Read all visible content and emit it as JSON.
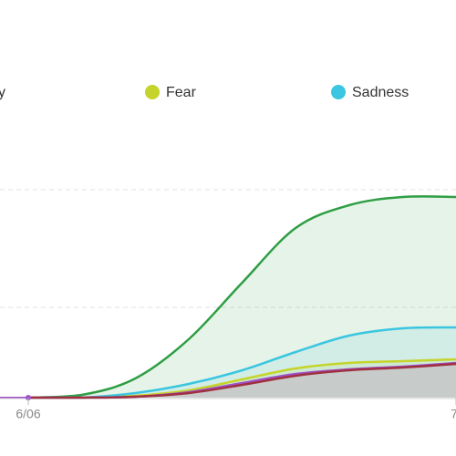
{
  "chart_data": {
    "type": "area-line",
    "categories": [
      "6/06",
      null,
      null,
      null,
      null,
      null,
      null,
      null,
      "7"
    ],
    "ylim": [
      0,
      228
    ],
    "series": [
      {
        "name": "y",
        "color": "#2e9e45",
        "values": [
          0,
          3,
          21,
          64,
          126,
          186,
          211,
          220,
          220
        ]
      },
      {
        "name": "Fear",
        "color": "#c5d42a",
        "values": [
          0,
          0,
          2,
          8,
          20,
          32,
          38,
          40,
          42
        ]
      },
      {
        "name": "Sadness",
        "color": "#3ac6e0",
        "values": [
          0,
          0,
          5,
          15,
          30,
          50,
          68,
          76,
          77
        ]
      },
      {
        "color": "#a050c8",
        "values": [
          0,
          0,
          1,
          6,
          16,
          26,
          31,
          34,
          38
        ]
      },
      {
        "color": "#a03040",
        "values": [
          0,
          0,
          1,
          5,
          14,
          24,
          30,
          33,
          37
        ]
      }
    ]
  }
}
